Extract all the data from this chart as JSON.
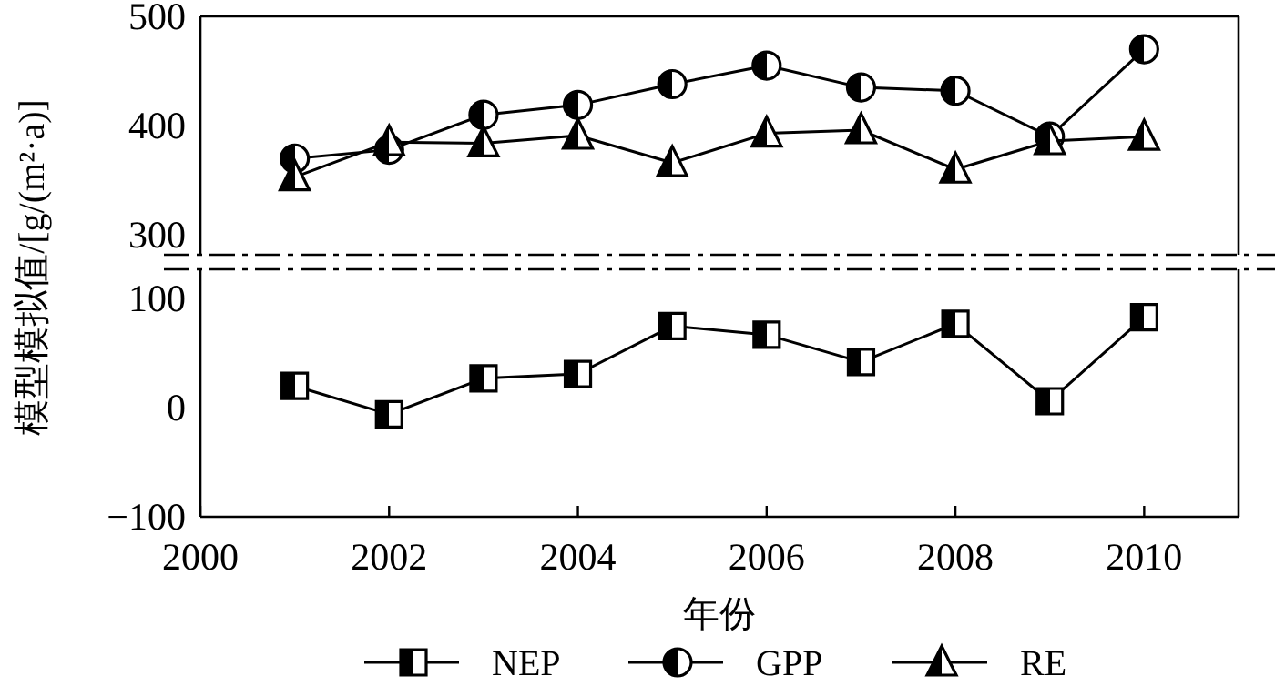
{
  "chart_data": [
    {
      "type": "line",
      "ylabel": "模型模拟值/[g/(m²·a)]",
      "x": [
        2001,
        2002,
        2003,
        2004,
        2005,
        2006,
        2007,
        2008,
        2009,
        2010
      ],
      "xlim": [
        2000,
        2011
      ],
      "ylim": [
        282,
        500
      ],
      "yticks": [
        300,
        400,
        500
      ],
      "tick_labels": "y",
      "legend": "bottom",
      "series": [
        {
          "name": "GPP",
          "color": "#000000",
          "marker": "circle",
          "values": [
            370,
            378,
            410,
            419,
            438,
            455,
            435,
            432,
            390,
            470
          ]
        },
        {
          "name": "RE",
          "color": "#000000",
          "marker": "triangle",
          "values": [
            353,
            385,
            384,
            391,
            366,
            393,
            396,
            360,
            386,
            390
          ]
        }
      ]
    },
    {
      "type": "line",
      "xlabel": "年份",
      "x": [
        2001,
        2002,
        2003,
        2004,
        2005,
        2006,
        2007,
        2008,
        2009,
        2010
      ],
      "xlim": [
        2000,
        2011
      ],
      "xticks": [
        2000,
        2002,
        2004,
        2006,
        2008,
        2010
      ],
      "ylim": [
        -100,
        127
      ],
      "yticks": [
        -100,
        0,
        100
      ],
      "legend": "bottom",
      "series": [
        {
          "name": "NEP",
          "color": "#000000",
          "marker": "square",
          "values": [
            20,
            -6,
            27,
            31,
            75,
            67,
            42,
            77,
            6,
            83
          ]
        }
      ]
    }
  ]
}
